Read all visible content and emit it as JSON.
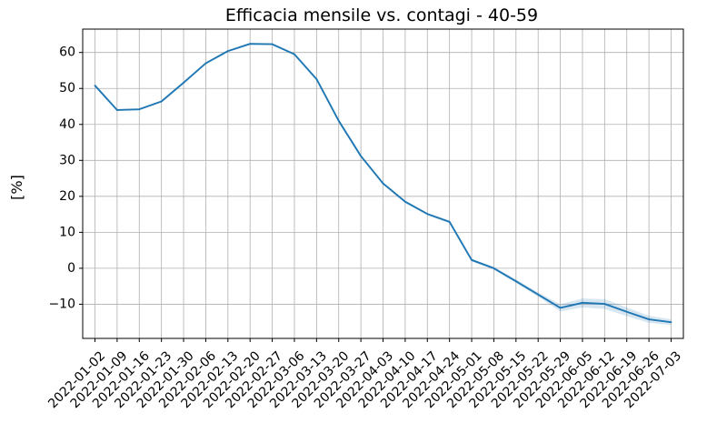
{
  "chart_data": {
    "type": "line",
    "title": "Efficacia mensile vs. contagi - 40-59",
    "xlabel": "",
    "ylabel": "[%]",
    "grid": true,
    "ylim": [
      -19.5,
      66.5
    ],
    "yticks": [
      -10,
      0,
      10,
      20,
      30,
      40,
      50,
      60
    ],
    "ytick_labels": [
      "−10",
      "0",
      "10",
      "20",
      "30",
      "40",
      "50",
      "60"
    ],
    "categories": [
      "2022-01-02",
      "2022-01-09",
      "2022-01-16",
      "2022-01-23",
      "2022-01-30",
      "2022-02-06",
      "2022-02-13",
      "2022-02-20",
      "2022-02-27",
      "2022-03-06",
      "2022-03-13",
      "2022-03-20",
      "2022-03-27",
      "2022-04-03",
      "2022-04-10",
      "2022-04-17",
      "2022-04-24",
      "2022-05-01",
      "2022-05-08",
      "2022-05-15",
      "2022-05-22",
      "2022-05-29",
      "2022-06-05",
      "2022-06-12",
      "2022-06-19",
      "2022-06-26",
      "2022-07-03"
    ],
    "series": [
      {
        "name": "Efficacia",
        "color": "#1f77b4",
        "band_color": "#1f77b4",
        "values": [
          50.8,
          44.0,
          44.2,
          46.4,
          51.6,
          57.0,
          60.4,
          62.4,
          62.3,
          59.5,
          52.6,
          41.0,
          31.2,
          23.6,
          18.5,
          15.1,
          12.9,
          2.3,
          0.0,
          -3.6,
          -7.3,
          -11.0,
          -9.6,
          -9.9,
          -12.1,
          -14.2,
          -15.0
        ],
        "lower": [
          50.6,
          43.8,
          44.0,
          46.2,
          51.4,
          56.8,
          60.2,
          62.2,
          62.1,
          59.3,
          52.3,
          40.7,
          30.9,
          23.3,
          18.2,
          14.8,
          12.5,
          1.9,
          -0.4,
          -4.1,
          -7.9,
          -12.0,
          -10.9,
          -11.3,
          -13.3,
          -15.2,
          -15.8
        ],
        "upper": [
          51.0,
          44.2,
          44.4,
          46.6,
          51.8,
          57.2,
          60.6,
          62.6,
          62.5,
          59.7,
          52.9,
          41.3,
          31.5,
          23.9,
          18.8,
          15.4,
          13.3,
          2.7,
          0.4,
          -3.1,
          -6.7,
          -10.0,
          -8.4,
          -8.6,
          -10.9,
          -13.2,
          -14.2
        ]
      }
    ]
  }
}
